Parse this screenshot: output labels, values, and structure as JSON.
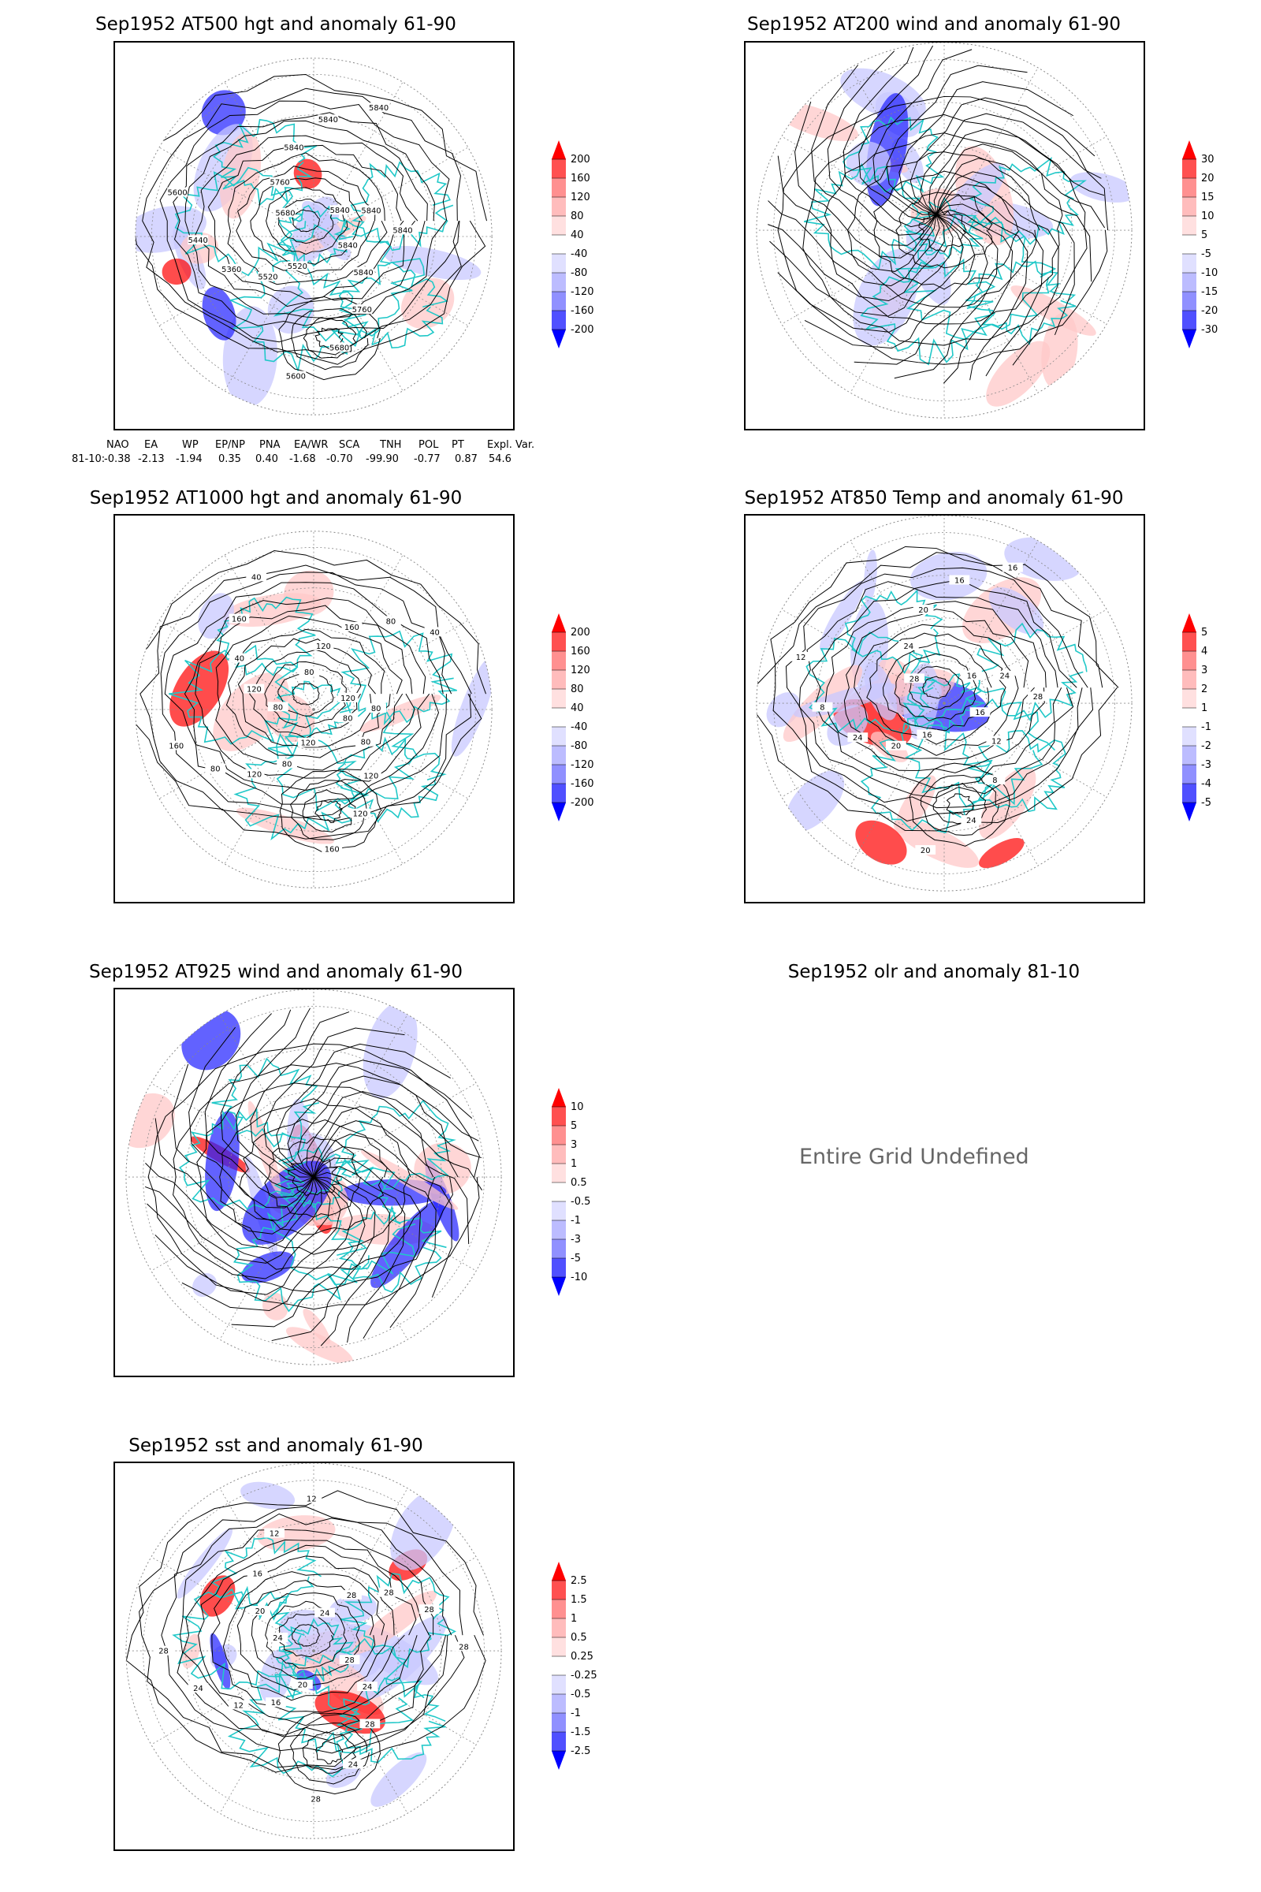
{
  "panels": [
    {
      "id": "p1",
      "title": "Sep1952 AT500 hgt and anomaly 61-90",
      "contour_labels": [
        "5840",
        "5840",
        "5760",
        "5680",
        "5600",
        "5520",
        "5520",
        "5360",
        "5440",
        "5600",
        "5680",
        "5760",
        "5840",
        "5840",
        "5840",
        "5840",
        "5840",
        "5840"
      ],
      "colorbar": [
        "200",
        "160",
        "120",
        "80",
        "40",
        "-40",
        "-80",
        "-120",
        "-160",
        "-200"
      ]
    },
    {
      "id": "p2",
      "title": "Sep1952 AT200 wind and anomaly 61-90",
      "colorbar": [
        "30",
        "20",
        "15",
        "10",
        "5",
        "-5",
        "-10",
        "-15",
        "-20",
        "-30"
      ]
    },
    {
      "id": "p3",
      "title": "Sep1952 AT1000 hgt and anomaly 61-90",
      "contour_labels": [
        "80",
        "80",
        "120",
        "120",
        "160",
        "120",
        "80",
        "120",
        "80",
        "160",
        "80",
        "120",
        "40",
        "160",
        "40",
        "80",
        "120",
        "160",
        "80",
        "40",
        "120",
        "80"
      ],
      "colorbar": [
        "200",
        "160",
        "120",
        "80",
        "40",
        "-40",
        "-80",
        "-120",
        "-160",
        "-200"
      ]
    },
    {
      "id": "p4",
      "title": "Sep1952 AT850 Temp and anomaly 61-90",
      "contour_labels": [
        "16",
        "12",
        "8",
        "24",
        "20",
        "16",
        "20",
        "24",
        "8",
        "12",
        "28",
        "24",
        "20",
        "16",
        "16",
        "16",
        "24",
        "28"
      ],
      "colorbar": [
        "5",
        "4",
        "3",
        "2",
        "1",
        "-1",
        "-2",
        "-3",
        "-4",
        "-5"
      ]
    },
    {
      "id": "p5",
      "title": "Sep1952 AT925 wind and anomaly 61-90",
      "colorbar": [
        "10",
        "5",
        "3",
        "1",
        "0.5",
        "-0.5",
        "-1",
        "-3",
        "-5",
        "-10"
      ]
    },
    {
      "id": "p6",
      "title": "Sep1952 olr and anomaly 81-10",
      "undefined_text": "Entire Grid Undefined"
    },
    {
      "id": "p7",
      "title": "Sep1952 sst and anomaly 61-90",
      "contour_labels": [
        "28",
        "24",
        "28",
        "24",
        "28",
        "20",
        "16",
        "12",
        "24",
        "28",
        "24",
        "20",
        "16",
        "12",
        "12",
        "24",
        "28",
        "28",
        "28",
        "28"
      ],
      "colorbar": [
        "2.5",
        "1.5",
        "1",
        "0.5",
        "0.25",
        "-0.25",
        "-0.5",
        "-1",
        "-1.5",
        "-2.5"
      ]
    }
  ],
  "indices": {
    "headers": [
      "NAO",
      "EA",
      "WP",
      "EP/NP",
      "PNA",
      "EA/WR",
      "SCA",
      "TNH",
      "POL",
      "PT",
      "Expl. Var."
    ],
    "row_label": "81-10:",
    "values": [
      "-0.38",
      "-2.13",
      "-1.94",
      "0.35",
      "0.40",
      "-1.68",
      "-0.70",
      "-99.90",
      "-0.77",
      "0.87",
      "54.6"
    ]
  },
  "colors": {
    "coast": "#20c8c8",
    "contour": "#000000",
    "warm_strong": "#ff0000",
    "warm_light": "#ffc8c8",
    "cool_strong": "#2020ff",
    "cool_light": "#c8c8ff"
  }
}
